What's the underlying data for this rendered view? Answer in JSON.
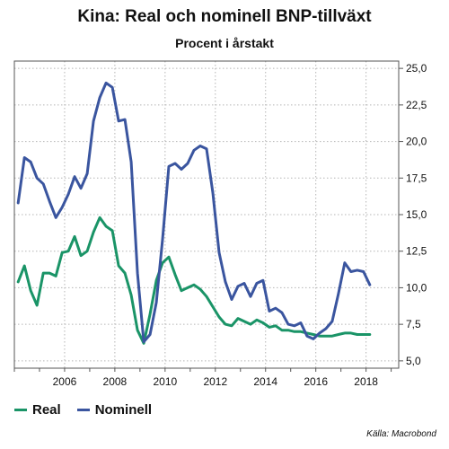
{
  "chart_data": {
    "type": "line",
    "title": "Kina: Real och nominell BNP-tillväxt",
    "subtitle": "Procent i årstakt",
    "source": "Källa: Macrobond",
    "xlim": [
      2004.0,
      2019.3
    ],
    "ylim": [
      4.5,
      25.5
    ],
    "yticks": [
      "5,0",
      "7,5",
      "10,0",
      "12,5",
      "15,0",
      "17,5",
      "20,0",
      "22,5",
      "25,0"
    ],
    "ytick_values": [
      5,
      7.5,
      10,
      12.5,
      15,
      17.5,
      20,
      22.5,
      25
    ],
    "xticks": [
      "2006",
      "2008",
      "2010",
      "2012",
      "2014",
      "2016",
      "2018"
    ],
    "xtick_values": [
      2006,
      2008,
      2010,
      2012,
      2014,
      2016,
      2018
    ],
    "grid": true,
    "legend_position": "bottom-left",
    "series": [
      {
        "name": "Real",
        "color": "#1a9467",
        "x": [
          2004.15,
          2004.4,
          2004.65,
          2004.9,
          2005.15,
          2005.4,
          2005.65,
          2005.9,
          2006.15,
          2006.4,
          2006.65,
          2006.9,
          2007.15,
          2007.4,
          2007.65,
          2007.9,
          2008.15,
          2008.4,
          2008.65,
          2008.9,
          2009.15,
          2009.4,
          2009.65,
          2009.9,
          2010.15,
          2010.4,
          2010.65,
          2010.9,
          2011.15,
          2011.4,
          2011.65,
          2011.9,
          2012.15,
          2012.4,
          2012.65,
          2012.9,
          2013.15,
          2013.4,
          2013.65,
          2013.9,
          2014.15,
          2014.4,
          2014.65,
          2014.9,
          2015.15,
          2015.4,
          2015.65,
          2015.9,
          2016.15,
          2016.4,
          2016.65,
          2016.9,
          2017.15,
          2017.4,
          2017.65,
          2017.9,
          2018.15
        ],
        "values": [
          10.4,
          11.5,
          9.8,
          8.8,
          11.0,
          11.0,
          10.8,
          12.4,
          12.5,
          13.5,
          12.2,
          12.5,
          13.8,
          14.8,
          14.2,
          13.9,
          11.5,
          11.0,
          9.5,
          7.1,
          6.2,
          8.2,
          10.5,
          11.7,
          12.1,
          10.9,
          9.8,
          10.0,
          10.2,
          9.9,
          9.4,
          8.7,
          8.0,
          7.5,
          7.4,
          7.9,
          7.7,
          7.5,
          7.8,
          7.6,
          7.3,
          7.4,
          7.1,
          7.1,
          7.0,
          7.0,
          6.9,
          6.8,
          6.7,
          6.7,
          6.7,
          6.8,
          6.9,
          6.9,
          6.8,
          6.8,
          6.8
        ]
      },
      {
        "name": "Nominell",
        "color": "#3a559f",
        "x": [
          2004.15,
          2004.4,
          2004.65,
          2004.9,
          2005.15,
          2005.4,
          2005.65,
          2005.9,
          2006.15,
          2006.4,
          2006.65,
          2006.9,
          2007.15,
          2007.4,
          2007.65,
          2007.9,
          2008.15,
          2008.4,
          2008.65,
          2008.9,
          2009.15,
          2009.4,
          2009.65,
          2009.9,
          2010.15,
          2010.4,
          2010.65,
          2010.9,
          2011.15,
          2011.4,
          2011.65,
          2011.9,
          2012.15,
          2012.4,
          2012.65,
          2012.9,
          2013.15,
          2013.4,
          2013.65,
          2013.9,
          2014.15,
          2014.4,
          2014.65,
          2014.9,
          2015.15,
          2015.4,
          2015.65,
          2015.9,
          2016.15,
          2016.4,
          2016.65,
          2016.9,
          2017.15,
          2017.4,
          2017.65,
          2017.9,
          2018.15
        ],
        "values": [
          15.8,
          18.9,
          18.6,
          17.5,
          17.1,
          15.9,
          14.8,
          15.5,
          16.4,
          17.6,
          16.8,
          17.8,
          21.4,
          23.0,
          24.0,
          23.7,
          21.4,
          21.5,
          18.6,
          11.0,
          6.3,
          6.8,
          9.0,
          13.3,
          18.3,
          18.5,
          18.1,
          18.5,
          19.4,
          19.7,
          19.5,
          16.5,
          12.4,
          10.4,
          9.2,
          10.1,
          10.3,
          9.4,
          10.3,
          10.5,
          8.4,
          8.6,
          8.3,
          7.5,
          7.4,
          7.6,
          6.7,
          6.5,
          6.9,
          7.2,
          7.7,
          9.6,
          11.7,
          11.1,
          11.2,
          11.1,
          10.2
        ]
      }
    ]
  }
}
